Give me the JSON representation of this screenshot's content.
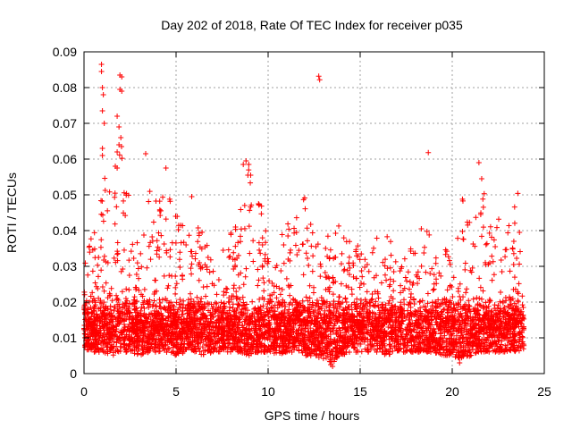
{
  "chart_data": {
    "type": "scatter",
    "title": "Day 202 of 2018, Rate Of TEC Index for receiver p035",
    "xlabel": "GPS time / hours",
    "ylabel": "ROTI / TECUs",
    "xlim": [
      0,
      25
    ],
    "ylim": [
      0,
      0.09
    ],
    "xticks": [
      0,
      5,
      10,
      15,
      20,
      25
    ],
    "xtick_labels": [
      "0",
      "5",
      "10",
      "15",
      "20",
      "25"
    ],
    "yticks": [
      0,
      0.01,
      0.02,
      0.03,
      0.04,
      0.05,
      0.06,
      0.07,
      0.08,
      0.09
    ],
    "ytick_labels": [
      "0",
      "0.01",
      "0.02",
      "0.03",
      "0.04",
      "0.05",
      "0.06",
      "0.07",
      "0.08",
      "0.09"
    ],
    "grid": true,
    "marker": "+",
    "series_color": "#ff0000",
    "envelope": {
      "x": [
        0,
        0.5,
        1.0,
        1.5,
        2.0,
        2.5,
        3.0,
        3.5,
        4.0,
        4.5,
        5.0,
        5.5,
        6.0,
        6.5,
        7.0,
        7.5,
        8.0,
        8.5,
        9.0,
        9.5,
        10.0,
        10.5,
        11.0,
        11.5,
        12.0,
        12.5,
        13.0,
        13.5,
        14.0,
        14.5,
        15.0,
        15.5,
        16.0,
        16.5,
        17.0,
        17.5,
        18.0,
        18.5,
        19.0,
        19.5,
        20.0,
        20.5,
        21.0,
        21.5,
        22.0,
        22.5,
        23.0,
        23.5,
        23.9
      ],
      "upper": [
        0.03,
        0.041,
        0.058,
        0.052,
        0.066,
        0.047,
        0.036,
        0.052,
        0.048,
        0.054,
        0.047,
        0.04,
        0.05,
        0.038,
        0.033,
        0.034,
        0.04,
        0.048,
        0.059,
        0.052,
        0.036,
        0.04,
        0.042,
        0.045,
        0.05,
        0.04,
        0.036,
        0.044,
        0.044,
        0.036,
        0.036,
        0.032,
        0.042,
        0.04,
        0.03,
        0.034,
        0.036,
        0.044,
        0.035,
        0.038,
        0.033,
        0.05,
        0.044,
        0.054,
        0.048,
        0.05,
        0.04,
        0.052,
        0.042
      ],
      "lower": [
        0.007,
        0.006,
        0.006,
        0.005,
        0.006,
        0.006,
        0.005,
        0.006,
        0.006,
        0.006,
        0.005,
        0.006,
        0.006,
        0.005,
        0.006,
        0.006,
        0.006,
        0.006,
        0.005,
        0.006,
        0.006,
        0.005,
        0.006,
        0.006,
        0.005,
        0.005,
        0.004,
        0.003,
        0.005,
        0.006,
        0.006,
        0.006,
        0.006,
        0.005,
        0.006,
        0.006,
        0.006,
        0.006,
        0.006,
        0.005,
        0.005,
        0.004,
        0.005,
        0.006,
        0.006,
        0.006,
        0.006,
        0.006,
        0.007
      ]
    },
    "notable_points": [
      {
        "x": 0.95,
        "y": 0.0865
      },
      {
        "x": 0.95,
        "y": 0.0845
      },
      {
        "x": 1.0,
        "y": 0.08
      },
      {
        "x": 1.05,
        "y": 0.078
      },
      {
        "x": 1.0,
        "y": 0.0735
      },
      {
        "x": 1.1,
        "y": 0.07
      },
      {
        "x": 1.0,
        "y": 0.063
      },
      {
        "x": 1.0,
        "y": 0.061
      },
      {
        "x": 1.95,
        "y": 0.0835
      },
      {
        "x": 2.05,
        "y": 0.083
      },
      {
        "x": 1.95,
        "y": 0.0795
      },
      {
        "x": 2.05,
        "y": 0.079
      },
      {
        "x": 1.8,
        "y": 0.072
      },
      {
        "x": 1.9,
        "y": 0.069
      },
      {
        "x": 1.9,
        "y": 0.064
      },
      {
        "x": 2.0,
        "y": 0.066
      },
      {
        "x": 1.8,
        "y": 0.062
      },
      {
        "x": 1.7,
        "y": 0.058
      },
      {
        "x": 1.8,
        "y": 0.0575
      },
      {
        "x": 3.35,
        "y": 0.0615
      },
      {
        "x": 4.45,
        "y": 0.0575
      },
      {
        "x": 5.85,
        "y": 0.0495
      },
      {
        "x": 8.65,
        "y": 0.0585
      },
      {
        "x": 8.8,
        "y": 0.0595
      },
      {
        "x": 8.9,
        "y": 0.0555
      },
      {
        "x": 8.95,
        "y": 0.0585
      },
      {
        "x": 9.05,
        "y": 0.0555
      },
      {
        "x": 12.75,
        "y": 0.0832
      },
      {
        "x": 12.8,
        "y": 0.0822
      },
      {
        "x": 18.7,
        "y": 0.0618
      },
      {
        "x": 21.45,
        "y": 0.059
      },
      {
        "x": 21.6,
        "y": 0.0545
      },
      {
        "x": 13.4,
        "y": 0.0025
      },
      {
        "x": 13.5,
        "y": 0.002
      },
      {
        "x": 20.4,
        "y": 0.003
      }
    ]
  }
}
